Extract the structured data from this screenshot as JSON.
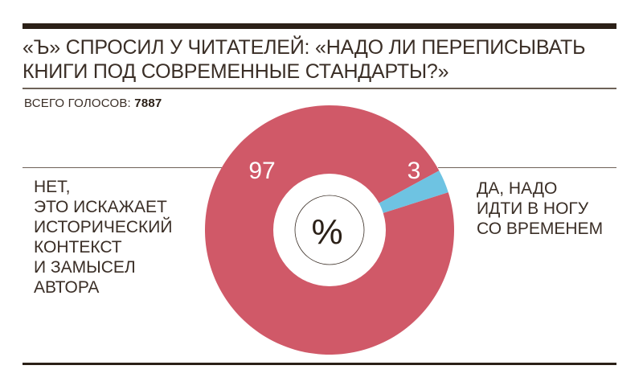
{
  "header": {
    "title": "«Ъ» СПРОСИЛ У ЧИТАТЕЛЕЙ: «НАДО ЛИ ПЕРЕПИСЫВАТЬ КНИГИ ПОД СОВРЕМЕННЫЕ СТАНДАРТЫ?»",
    "votes_label": "ВСЕГО ГОЛОСОВ:",
    "votes_value": "7887"
  },
  "labels": {
    "no": "НЕТ,\nЭТО ИСКАЖАЕТ\nИСТОРИЧЕСКИЙ\nКОНТЕКСТ\nИ ЗАМЫСЕЛ\nАВТОРА",
    "yes": "ДА, НАДО\nИДТИ В НОГУ\nСО ВРЕМЕНЕМ",
    "center_symbol": "%"
  },
  "colors": {
    "no": "#d05968",
    "yes": "#6ec3e2",
    "text": "#3a2e26",
    "rule": "#2b2017"
  },
  "chart_data": {
    "type": "pie",
    "variant": "donut",
    "title": "«Ъ» СПРОСИЛ У ЧИТАТЕЛЕЙ: «НАДО ЛИ ПЕРЕПИСЫВАТЬ КНИГИ ПОД СОВРЕМЕННЫЕ СТАНДАРТЫ?»",
    "subtitle": "ВСЕГО ГОЛОСОВ: 7887",
    "unit": "%",
    "categories": [
      "НЕТ, ЭТО ИСКАЖАЕТ ИСТОРИЧЕСКИЙ КОНТЕКСТ И ЗАМЫСЕЛ АВТОРА",
      "ДА, НАДО ИДТИ В НОГУ СО ВРЕМЕНЕМ"
    ],
    "values": [
      97,
      3
    ],
    "data_labels": [
      "97",
      "3"
    ],
    "colors": [
      "#d05968",
      "#6ec3e2"
    ],
    "legend": "none (labels placed left and right of chart)"
  }
}
